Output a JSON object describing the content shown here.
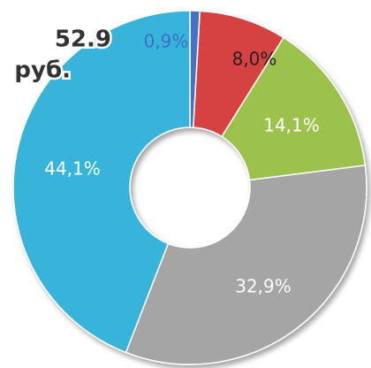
{
  "chart_data": {
    "type": "pie",
    "annotations": [
      "52.9",
      "руб."
    ],
    "categories": [
      null,
      null,
      null,
      null,
      null
    ],
    "values": [
      0.9,
      8.0,
      14.1,
      32.9,
      44.1
    ],
    "value_labels": [
      "0,9%",
      "8,0%",
      "14,1%",
      "32,9%",
      "44,1%"
    ],
    "colors": [
      "#4472c4",
      "#d64242",
      "#9cc24d",
      "#a5a5a5",
      "#38b4da"
    ],
    "donut": true
  }
}
